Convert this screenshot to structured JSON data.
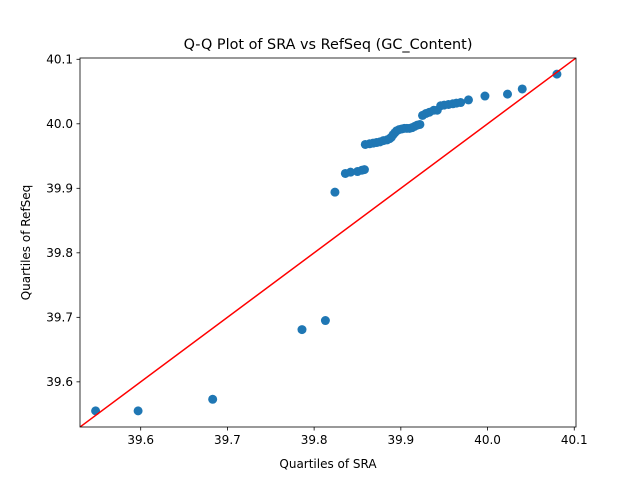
{
  "chart_data": {
    "type": "scatter",
    "title": "Q-Q Plot of SRA vs RefSeq (GC_Content)",
    "xlabel": "Quartiles of SRA",
    "ylabel": "Quartiles of RefSeq",
    "xlim": [
      39.53,
      40.102
    ],
    "ylim": [
      39.53,
      40.102
    ],
    "xticks": [
      39.6,
      39.7,
      39.8,
      39.9,
      40.0,
      40.1
    ],
    "yticks": [
      39.6,
      39.7,
      39.8,
      39.9,
      40.0,
      40.1
    ],
    "xtick_labels": [
      "39.6",
      "39.7",
      "39.8",
      "39.9",
      "40.0",
      "40.1"
    ],
    "ytick_labels": [
      "39.6",
      "39.7",
      "39.8",
      "39.9",
      "40.0",
      "40.1"
    ],
    "grid": false,
    "marker_color": "#1f77b4",
    "reference_line": {
      "from": [
        39.53,
        39.53
      ],
      "to": [
        40.102,
        40.102
      ],
      "color": "#ff0000"
    },
    "points": [
      [
        39.548,
        39.555
      ],
      [
        39.597,
        39.555
      ],
      [
        39.683,
        39.573
      ],
      [
        39.786,
        39.681
      ],
      [
        39.813,
        39.695
      ],
      [
        39.824,
        39.894
      ],
      [
        39.836,
        39.923
      ],
      [
        39.842,
        39.925
      ],
      [
        39.85,
        39.926
      ],
      [
        39.855,
        39.928
      ],
      [
        39.858,
        39.929
      ],
      [
        39.859,
        39.968
      ],
      [
        39.864,
        39.969
      ],
      [
        39.868,
        39.97
      ],
      [
        39.872,
        39.971
      ],
      [
        39.876,
        39.972
      ],
      [
        39.88,
        39.974
      ],
      [
        39.884,
        39.975
      ],
      [
        39.887,
        39.977
      ],
      [
        39.889,
        39.979
      ],
      [
        39.891,
        39.983
      ],
      [
        39.893,
        39.986
      ],
      [
        39.895,
        39.989
      ],
      [
        39.898,
        39.991
      ],
      [
        39.901,
        39.992
      ],
      [
        39.904,
        39.993
      ],
      [
        39.907,
        39.993
      ],
      [
        39.91,
        39.993
      ],
      [
        39.913,
        39.994
      ],
      [
        39.916,
        39.996
      ],
      [
        39.919,
        39.998
      ],
      [
        39.922,
        39.999
      ],
      [
        39.925,
        40.013
      ],
      [
        39.929,
        40.016
      ],
      [
        39.933,
        40.018
      ],
      [
        39.938,
        40.021
      ],
      [
        39.942,
        40.021
      ],
      [
        39.946,
        40.028
      ],
      [
        39.95,
        40.029
      ],
      [
        39.955,
        40.03
      ],
      [
        39.96,
        40.031
      ],
      [
        39.964,
        40.032
      ],
      [
        39.969,
        40.033
      ],
      [
        39.978,
        40.037
      ],
      [
        39.997,
        40.043
      ],
      [
        40.023,
        40.046
      ],
      [
        40.04,
        40.054
      ],
      [
        40.08,
        40.077
      ]
    ]
  }
}
